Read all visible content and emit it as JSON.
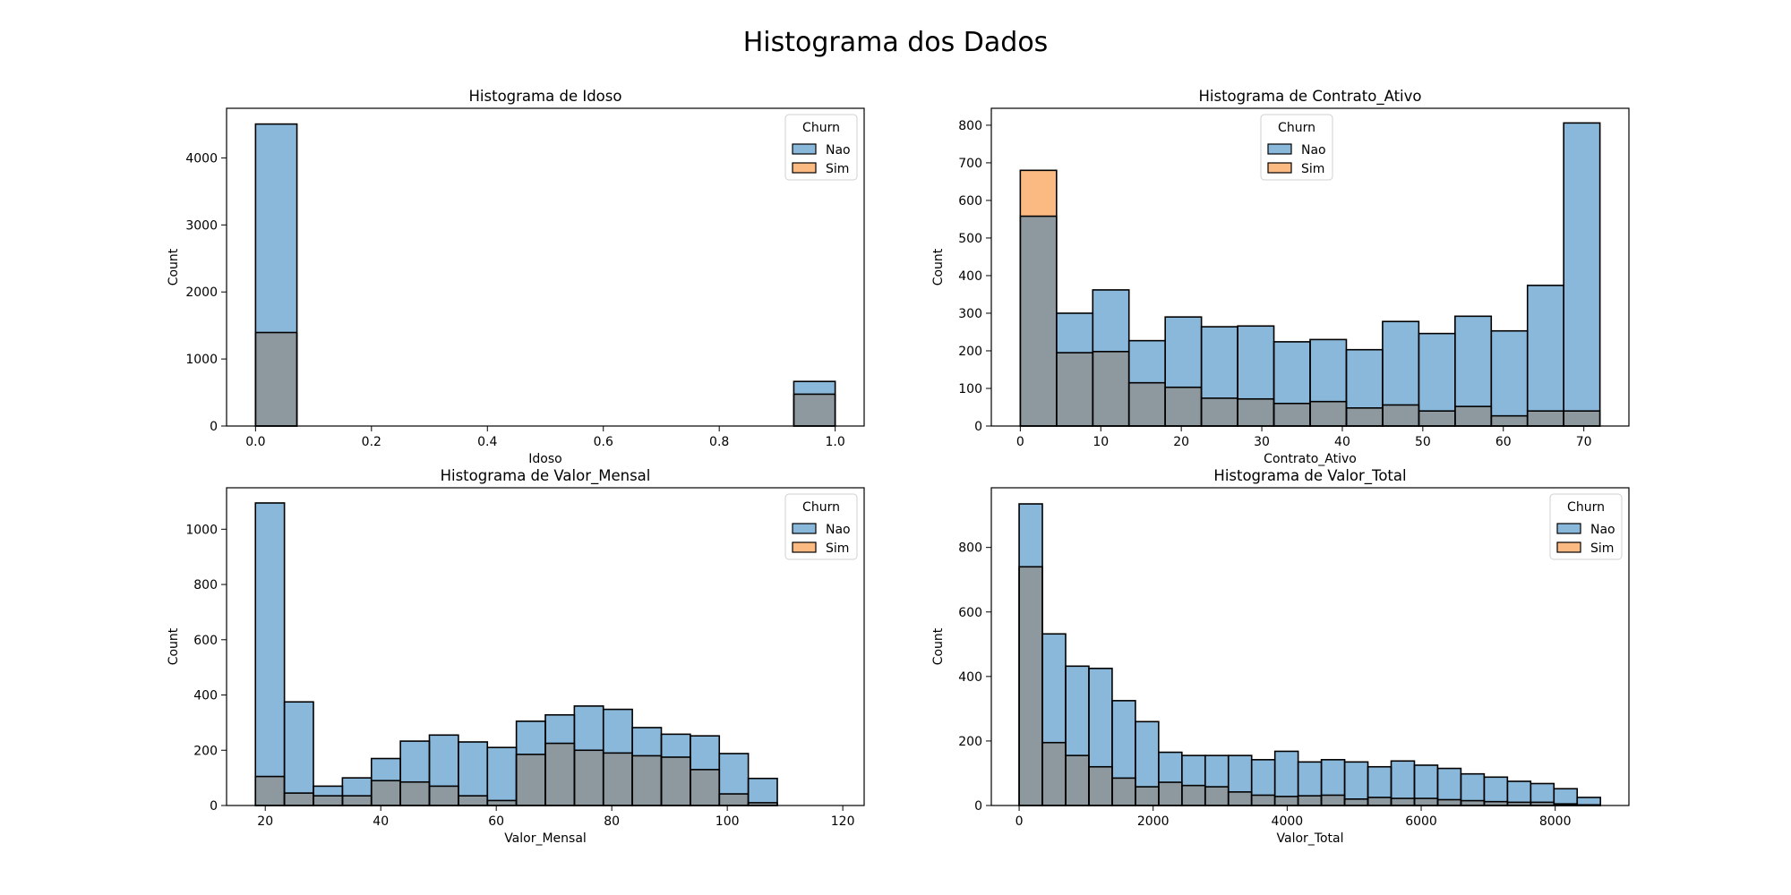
{
  "figure": {
    "title": "Histograma dos Dados"
  },
  "colors": {
    "nao": "#8ab8da",
    "sim": "#fbba82",
    "overlap": "#8d999f"
  },
  "chart_data": [
    {
      "type": "bar",
      "title": "Histograma de Idoso",
      "xlabel": "Idoso",
      "ylabel": "Count",
      "xlim": [
        -0.05,
        1.05
      ],
      "ylim": [
        0,
        4740
      ],
      "xticks": [
        0.0,
        0.2,
        0.4,
        0.6,
        0.8,
        1.0
      ],
      "xtick_labels": [
        "0.0",
        "0.2",
        "0.4",
        "0.6",
        "0.8",
        "1.0"
      ],
      "yticks": [
        0,
        1000,
        2000,
        3000,
        4000
      ],
      "bins": [
        {
          "x0": 0.0,
          "x1": 0.0714,
          "nao": 4505,
          "sim": 1395
        },
        {
          "x0": 0.9286,
          "x1": 1.0,
          "nao": 665,
          "sim": 475
        }
      ],
      "legend": {
        "title": "Churn",
        "entries": [
          "Nao",
          "Sim"
        ],
        "position": "top-right"
      }
    },
    {
      "type": "bar",
      "title": "Histograma de Contrato_Ativo",
      "xlabel": "Contrato_Ativo",
      "ylabel": "Count",
      "xlim": [
        -3.6,
        75.6
      ],
      "ylim": [
        0,
        845
      ],
      "xticks": [
        0,
        10,
        20,
        30,
        40,
        50,
        60,
        70
      ],
      "xtick_labels": [
        "0",
        "10",
        "20",
        "30",
        "40",
        "50",
        "60",
        "70"
      ],
      "yticks": [
        0,
        100,
        200,
        300,
        400,
        500,
        600,
        700,
        800
      ],
      "bin_start": 0,
      "bin_width": 4.5,
      "nao": [
        558,
        300,
        362,
        227,
        290,
        264,
        266,
        224,
        230,
        203,
        278,
        246,
        292,
        253,
        374,
        806
      ],
      "sim": [
        680,
        195,
        198,
        115,
        103,
        74,
        72,
        60,
        65,
        48,
        56,
        40,
        52,
        27,
        40,
        40
      ],
      "legend": {
        "title": "Churn",
        "entries": [
          "Nao",
          "Sim"
        ],
        "position": "upper center"
      }
    },
    {
      "type": "bar",
      "title": "Histograma de Valor_Mensal",
      "xlabel": "Valor_Mensal",
      "ylabel": "Count",
      "xlim": [
        13.3,
        123.7
      ],
      "ylim": [
        0,
        1150
      ],
      "xticks": [
        20,
        40,
        60,
        80,
        100,
        120
      ],
      "xtick_labels": [
        "20",
        "40",
        "60",
        "80",
        "100",
        "120"
      ],
      "yticks": [
        0,
        200,
        400,
        600,
        800,
        1000
      ],
      "bin_start": 18.3,
      "bin_width": 5.02,
      "nao": [
        1095,
        375,
        70,
        100,
        170,
        233,
        255,
        230,
        210,
        305,
        328,
        360,
        348,
        282,
        258,
        252,
        188,
        98
      ],
      "sim": [
        105,
        45,
        35,
        35,
        90,
        85,
        70,
        35,
        18,
        185,
        225,
        200,
        190,
        180,
        175,
        130,
        42,
        10
      ],
      "legend": {
        "title": "Churn",
        "entries": [
          "Nao",
          "Sim"
        ],
        "position": "top-right"
      }
    },
    {
      "type": "bar",
      "title": "Histograma de Valor_Total",
      "xlabel": "Valor_Total",
      "ylabel": "Count",
      "xlim": [
        -415,
        9100
      ],
      "ylim": [
        0,
        985
      ],
      "xticks": [
        0,
        2000,
        4000,
        6000,
        8000
      ],
      "xtick_labels": [
        "0",
        "2000",
        "4000",
        "6000",
        "8000"
      ],
      "yticks": [
        0,
        200,
        400,
        600,
        800
      ],
      "bin_start": 0,
      "bin_width": 347,
      "nao": [
        935,
        532,
        432,
        425,
        325,
        260,
        165,
        155,
        155,
        155,
        142,
        168,
        135,
        142,
        135,
        120,
        138,
        125,
        115,
        98,
        88,
        75,
        68,
        52,
        25
      ],
      "sim": [
        740,
        195,
        155,
        120,
        85,
        58,
        72,
        62,
        58,
        42,
        32,
        28,
        30,
        32,
        20,
        25,
        22,
        22,
        18,
        15,
        12,
        10,
        10,
        5,
        2
      ],
      "legend": {
        "title": "Churn",
        "entries": [
          "Nao",
          "Sim"
        ],
        "position": "top-right"
      }
    }
  ]
}
